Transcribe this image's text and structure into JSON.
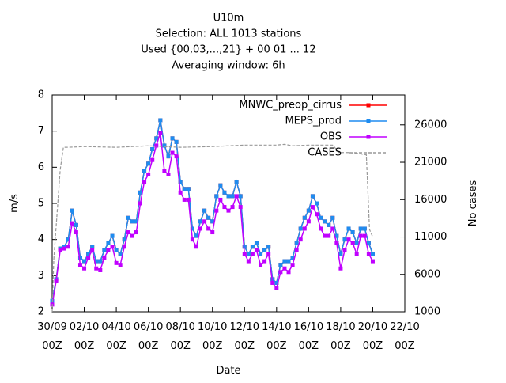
{
  "chart_data": {
    "type": "line",
    "title": [
      "U10m",
      "Selection: ALL    1013 stations",
      "Used {00,03,...,21} + 00 01 ... 12",
      "Averaging window:  6h"
    ],
    "xlabel": "Date",
    "ylabel": "m/s",
    "y2label": "No cases",
    "xlim": [
      0,
      22
    ],
    "ylim": [
      2,
      8
    ],
    "y2lim": [
      1000,
      30000
    ],
    "xticks": [
      {
        "value": 0,
        "label": "30/09\n00Z"
      },
      {
        "value": 2,
        "label": "02/10\n00Z"
      },
      {
        "value": 4,
        "label": "04/10\n00Z"
      },
      {
        "value": 6,
        "label": "06/10\n00Z"
      },
      {
        "value": 8,
        "label": "08/10\n00Z"
      },
      {
        "value": 10,
        "label": "10/10\n00Z"
      },
      {
        "value": 12,
        "label": "12/10\n00Z"
      },
      {
        "value": 14,
        "label": "14/10\n00Z"
      },
      {
        "value": 16,
        "label": "16/10\n00Z"
      },
      {
        "value": 18,
        "label": "18/10\n00Z"
      },
      {
        "value": 20,
        "label": "20/10\n00Z"
      },
      {
        "value": 22,
        "label": "22/10\n00Z"
      }
    ],
    "yticks": [
      2,
      3,
      4,
      5,
      6,
      7,
      8
    ],
    "y2ticks": [
      1000,
      6000,
      11000,
      16000,
      21000,
      26000
    ],
    "legend": "top-right",
    "x": [
      0,
      0.25,
      0.5,
      0.75,
      1,
      1.25,
      1.5,
      1.75,
      2,
      2.25,
      2.5,
      2.75,
      3,
      3.25,
      3.5,
      3.75,
      4,
      4.25,
      4.5,
      4.75,
      5,
      5.25,
      5.5,
      5.75,
      6,
      6.25,
      6.5,
      6.75,
      7,
      7.25,
      7.5,
      7.75,
      8,
      8.25,
      8.5,
      8.75,
      9,
      9.25,
      9.5,
      9.75,
      10,
      10.25,
      10.5,
      10.75,
      11,
      11.25,
      11.5,
      11.75,
      12,
      12.25,
      12.5,
      12.75,
      13,
      13.25,
      13.5,
      13.75,
      14,
      14.25,
      14.5,
      14.75,
      15,
      15.25,
      15.5,
      15.75,
      16,
      16.25,
      16.5,
      16.75,
      17,
      17.25,
      17.5,
      17.75,
      18,
      18.25,
      18.5,
      18.75,
      19,
      19.25,
      19.5,
      19.75,
      20
    ],
    "series": [
      {
        "name": "MNWC_preop_cirrus",
        "color": "#ff0000",
        "values": [
          2.3,
          2.9,
          3.75,
          3.8,
          4.0,
          4.8,
          4.4,
          3.5,
          3.4,
          3.6,
          3.8,
          3.4,
          3.4,
          3.7,
          3.9,
          4.1,
          3.7,
          3.6,
          4.0,
          4.6,
          4.5,
          4.5,
          5.3,
          5.9,
          6.1,
          6.5,
          6.8,
          7.3,
          6.6,
          6.3,
          6.8,
          6.7,
          5.6,
          5.4,
          5.4,
          4.3,
          4.1,
          4.5,
          4.8,
          4.6,
          4.5,
          5.2,
          5.5,
          5.3,
          5.2,
          5.2,
          5.6,
          5.2,
          3.8,
          3.6,
          3.8,
          3.9,
          3.6,
          3.7,
          3.8,
          2.9,
          2.8,
          3.3,
          3.4,
          3.4,
          3.5,
          3.9,
          4.3,
          4.6,
          4.8,
          5.2,
          5.0,
          4.6,
          4.5,
          4.4,
          4.6,
          4.1,
          3.6,
          4.0,
          4.3,
          4.2,
          3.9,
          4.3,
          4.3,
          3.9,
          3.6
        ]
      },
      {
        "name": "MEPS_prod",
        "color": "#1e8cf0",
        "values": [
          2.3,
          2.9,
          3.75,
          3.8,
          4.0,
          4.8,
          4.4,
          3.5,
          3.4,
          3.6,
          3.8,
          3.4,
          3.4,
          3.7,
          3.9,
          4.1,
          3.7,
          3.6,
          4.0,
          4.6,
          4.5,
          4.5,
          5.3,
          5.9,
          6.1,
          6.5,
          6.8,
          7.3,
          6.6,
          6.3,
          6.8,
          6.7,
          5.6,
          5.4,
          5.4,
          4.3,
          4.1,
          4.5,
          4.8,
          4.6,
          4.5,
          5.2,
          5.5,
          5.3,
          5.2,
          5.2,
          5.6,
          5.2,
          3.8,
          3.6,
          3.8,
          3.9,
          3.6,
          3.7,
          3.8,
          2.9,
          2.8,
          3.3,
          3.4,
          3.4,
          3.5,
          3.9,
          4.3,
          4.6,
          4.8,
          5.2,
          5.0,
          4.6,
          4.5,
          4.4,
          4.6,
          4.1,
          3.6,
          4.0,
          4.3,
          4.2,
          3.9,
          4.3,
          4.3,
          3.9,
          3.6
        ]
      },
      {
        "name": "OBS",
        "color": "#c000ff",
        "values": [
          2.2,
          2.85,
          3.7,
          3.75,
          3.8,
          4.45,
          4.2,
          3.3,
          3.2,
          3.5,
          3.7,
          3.2,
          3.15,
          3.5,
          3.7,
          3.8,
          3.35,
          3.3,
          3.8,
          4.2,
          4.1,
          4.2,
          5.0,
          5.6,
          5.8,
          6.2,
          6.6,
          6.95,
          5.9,
          5.8,
          6.4,
          6.3,
          5.3,
          5.1,
          5.1,
          4.0,
          3.8,
          4.3,
          4.5,
          4.3,
          4.2,
          4.8,
          5.1,
          4.9,
          4.8,
          4.9,
          5.2,
          4.9,
          3.6,
          3.4,
          3.6,
          3.7,
          3.3,
          3.4,
          3.6,
          2.8,
          2.65,
          3.1,
          3.2,
          3.1,
          3.3,
          3.7,
          4.0,
          4.3,
          4.5,
          4.9,
          4.7,
          4.3,
          4.1,
          4.1,
          4.3,
          3.9,
          3.2,
          3.7,
          4.0,
          3.9,
          3.6,
          4.1,
          4.1,
          3.6,
          3.4
        ]
      },
      {
        "name": "CASES",
        "color": "#999999",
        "axis": "y2",
        "x": [
          0,
          0.1,
          0.3,
          0.5,
          0.7,
          1,
          2,
          4,
          6,
          8,
          10,
          12,
          14,
          14.5,
          15,
          16,
          17,
          17.5,
          17.9,
          18.5,
          19,
          19.6,
          19.8,
          20
        ],
        "values": [
          1000,
          8000,
          14000,
          20000,
          23000,
          23000,
          23100,
          23000,
          23200,
          23000,
          23100,
          23300,
          23300,
          23400,
          23200,
          23300,
          23300,
          23300,
          22300,
          22300,
          22200,
          22000,
          12000,
          11000
        ]
      }
    ]
  }
}
